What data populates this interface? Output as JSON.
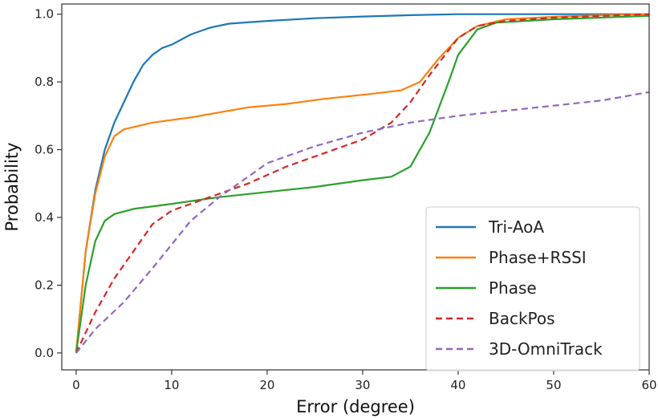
{
  "chart_data": {
    "type": "line",
    "title": "",
    "xlabel": "Error (degree)",
    "ylabel": "Probability",
    "xlim": [
      -1.5,
      60
    ],
    "ylim": [
      -0.05,
      1.03
    ],
    "xticks": [
      0,
      10,
      20,
      30,
      40,
      50,
      60
    ],
    "yticks": [
      0.0,
      0.2,
      0.4,
      0.6,
      0.8,
      1.0
    ],
    "xtick_labels": [
      "0",
      "10",
      "20",
      "30",
      "40",
      "50",
      "60"
    ],
    "ytick_labels": [
      "0.0",
      "0.2",
      "0.4",
      "0.6",
      "0.8",
      "1.0"
    ],
    "grid": false,
    "legend_position": "bottom-right",
    "series": [
      {
        "name": "Tri-AoA",
        "color": "#1f77b4",
        "dash": "solid",
        "points": [
          [
            0,
            0.0
          ],
          [
            0.5,
            0.15
          ],
          [
            1,
            0.3
          ],
          [
            2,
            0.48
          ],
          [
            3,
            0.6
          ],
          [
            4,
            0.68
          ],
          [
            5,
            0.74
          ],
          [
            6,
            0.8
          ],
          [
            7,
            0.85
          ],
          [
            8,
            0.88
          ],
          [
            9,
            0.9
          ],
          [
            10,
            0.91
          ],
          [
            12,
            0.94
          ],
          [
            14,
            0.96
          ],
          [
            16,
            0.972
          ],
          [
            20,
            0.98
          ],
          [
            25,
            0.988
          ],
          [
            30,
            0.993
          ],
          [
            35,
            0.997
          ],
          [
            40,
            1.0
          ],
          [
            60,
            1.0
          ]
        ]
      },
      {
        "name": "Phase+RSSI",
        "color": "#ff7f0e",
        "dash": "solid",
        "points": [
          [
            0,
            0.0
          ],
          [
            0.5,
            0.15
          ],
          [
            1,
            0.3
          ],
          [
            2,
            0.47
          ],
          [
            3,
            0.58
          ],
          [
            4,
            0.64
          ],
          [
            5,
            0.66
          ],
          [
            8,
            0.68
          ],
          [
            12,
            0.695
          ],
          [
            15,
            0.71
          ],
          [
            18,
            0.725
          ],
          [
            22,
            0.735
          ],
          [
            26,
            0.75
          ],
          [
            30,
            0.762
          ],
          [
            34,
            0.775
          ],
          [
            36,
            0.8
          ],
          [
            38,
            0.87
          ],
          [
            40,
            0.93
          ],
          [
            42,
            0.965
          ],
          [
            45,
            0.985
          ],
          [
            50,
            0.992
          ],
          [
            55,
            0.997
          ],
          [
            60,
            1.0
          ]
        ]
      },
      {
        "name": "Phase",
        "color": "#2ca02c",
        "dash": "solid",
        "points": [
          [
            0,
            0.0
          ],
          [
            1,
            0.2
          ],
          [
            2,
            0.33
          ],
          [
            3,
            0.39
          ],
          [
            4,
            0.41
          ],
          [
            6,
            0.425
          ],
          [
            10,
            0.44
          ],
          [
            15,
            0.46
          ],
          [
            20,
            0.475
          ],
          [
            25,
            0.49
          ],
          [
            30,
            0.51
          ],
          [
            33,
            0.52
          ],
          [
            35,
            0.55
          ],
          [
            37,
            0.65
          ],
          [
            39,
            0.8
          ],
          [
            40,
            0.88
          ],
          [
            42,
            0.955
          ],
          [
            44,
            0.975
          ],
          [
            50,
            0.985
          ],
          [
            55,
            0.99
          ],
          [
            60,
            0.995
          ]
        ]
      },
      {
        "name": "BackPos",
        "color": "#d62728",
        "dash": "dashed",
        "points": [
          [
            0,
            0.0
          ],
          [
            2,
            0.12
          ],
          [
            4,
            0.22
          ],
          [
            6,
            0.3
          ],
          [
            8,
            0.38
          ],
          [
            10,
            0.42
          ],
          [
            14,
            0.46
          ],
          [
            18,
            0.5
          ],
          [
            22,
            0.55
          ],
          [
            26,
            0.59
          ],
          [
            30,
            0.63
          ],
          [
            33,
            0.68
          ],
          [
            35,
            0.74
          ],
          [
            37,
            0.82
          ],
          [
            40,
            0.93
          ],
          [
            42,
            0.965
          ],
          [
            45,
            0.98
          ],
          [
            50,
            0.99
          ],
          [
            55,
            0.995
          ],
          [
            60,
            1.0
          ]
        ]
      },
      {
        "name": "3D-OmniTrack",
        "color": "#9467bd",
        "dash": "dashed",
        "points": [
          [
            0,
            0.0
          ],
          [
            2,
            0.07
          ],
          [
            5,
            0.15
          ],
          [
            8,
            0.25
          ],
          [
            10,
            0.32
          ],
          [
            12,
            0.39
          ],
          [
            15,
            0.46
          ],
          [
            18,
            0.52
          ],
          [
            20,
            0.56
          ],
          [
            25,
            0.61
          ],
          [
            30,
            0.65
          ],
          [
            35,
            0.68
          ],
          [
            40,
            0.7
          ],
          [
            45,
            0.715
          ],
          [
            50,
            0.73
          ],
          [
            55,
            0.745
          ],
          [
            60,
            0.77
          ]
        ]
      }
    ]
  }
}
